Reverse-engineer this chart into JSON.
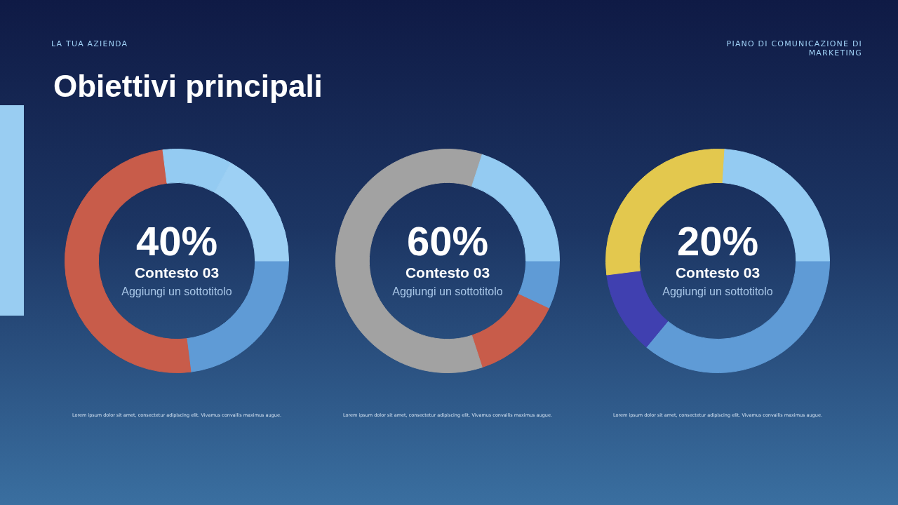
{
  "chart_data": [
    {
      "type": "donut",
      "title": "Obiettivi principali",
      "categories": [
        null,
        null,
        null,
        null
      ],
      "values": [
        23,
        50,
        10,
        17
      ],
      "colors": [
        "#5f9bd6",
        "#c85c4a",
        "#94cbf2",
        "#9dd0f4"
      ],
      "legend": false,
      "annotations": [
        "LA TUA AZIENDA",
        "PIANO DI COMUNICAZIONE DI MARKETING",
        "40%",
        "Contesto 03",
        "Aggiungi un sottotitolo",
        "Lorem ipsum dolor sit amet, consectetur adipiscing elit. Vivamus convallis maximus augue."
      ]
    },
    {
      "type": "donut",
      "categories": [
        null,
        null,
        null,
        null
      ],
      "values": [
        7,
        13,
        60,
        20
      ],
      "colors": [
        "#5f9bd6",
        "#c85c4a",
        "#a2a2a2",
        "#94cbf2"
      ],
      "legend": false,
      "annotations": [
        "60%",
        "Contesto 03",
        "Aggiungi un sottotitolo",
        "Lorem ipsum dolor sit amet, consectetur adipiscing elit. Vivamus convallis maximus augue."
      ]
    },
    {
      "type": "donut",
      "categories": [
        null,
        null,
        null,
        null
      ],
      "values": [
        36,
        12,
        28,
        24
      ],
      "colors": [
        "#5f9bd6",
        "#4040b0",
        "#e3c84e",
        "#94cbf2"
      ],
      "legend": false,
      "annotations": [
        "20%",
        "Contesto 03",
        "Aggiungi un sottotitolo",
        "Lorem ipsum dolor sit amet, consectetur adipiscing elit. Vivamus convallis maximus augue."
      ]
    }
  ]
}
